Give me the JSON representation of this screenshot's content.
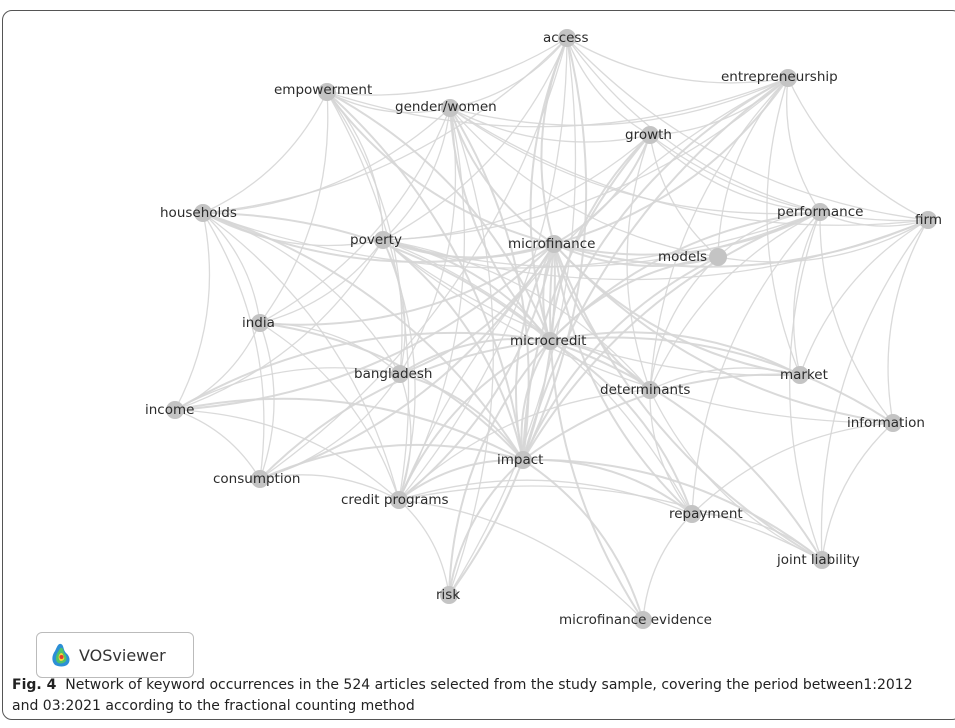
{
  "diagram": {
    "nodes": [
      {
        "id": "access",
        "label": "access"
      },
      {
        "id": "empowerment",
        "label": "empowerment"
      },
      {
        "id": "gender_women",
        "label": "gender/women"
      },
      {
        "id": "entrepreneurship",
        "label": "entrepreneurship"
      },
      {
        "id": "growth",
        "label": "growth"
      },
      {
        "id": "households",
        "label": "households"
      },
      {
        "id": "performance",
        "label": "performance"
      },
      {
        "id": "firm",
        "label": "firm"
      },
      {
        "id": "poverty",
        "label": "poverty"
      },
      {
        "id": "microfinance",
        "label": "microfinance"
      },
      {
        "id": "models",
        "label": "models"
      },
      {
        "id": "india",
        "label": "india"
      },
      {
        "id": "microcredit",
        "label": "microcredit"
      },
      {
        "id": "bangladesh",
        "label": "bangladesh"
      },
      {
        "id": "determinants",
        "label": "determinants"
      },
      {
        "id": "market",
        "label": "market"
      },
      {
        "id": "income",
        "label": "income"
      },
      {
        "id": "information",
        "label": "information"
      },
      {
        "id": "impact",
        "label": "impact"
      },
      {
        "id": "consumption",
        "label": "consumption"
      },
      {
        "id": "credit_programs",
        "label": "credit programs"
      },
      {
        "id": "repayment",
        "label": "repayment"
      },
      {
        "id": "joint_liability",
        "label": "joint liability"
      },
      {
        "id": "risk",
        "label": "risk"
      },
      {
        "id": "microfinance_evidence",
        "label": "microfinance evidence"
      }
    ],
    "edges": [
      [
        "microfinance",
        "microcredit"
      ],
      [
        "microfinance",
        "impact"
      ],
      [
        "microfinance",
        "poverty"
      ],
      [
        "microfinance",
        "gender_women"
      ],
      [
        "microfinance",
        "access"
      ],
      [
        "microfinance",
        "growth"
      ],
      [
        "microfinance",
        "entrepreneurship"
      ],
      [
        "microfinance",
        "performance"
      ],
      [
        "microfinance",
        "firm"
      ],
      [
        "microfinance",
        "models"
      ],
      [
        "microfinance",
        "households"
      ],
      [
        "microfinance",
        "empowerment"
      ],
      [
        "microfinance",
        "india"
      ],
      [
        "microfinance",
        "bangladesh"
      ],
      [
        "microfinance",
        "determinants"
      ],
      [
        "microfinance",
        "market"
      ],
      [
        "microfinance",
        "information"
      ],
      [
        "microfinance",
        "credit_programs"
      ],
      [
        "microfinance",
        "repayment"
      ],
      [
        "microfinance",
        "joint_liability"
      ],
      [
        "microfinance",
        "risk"
      ],
      [
        "microfinance",
        "microfinance_evidence"
      ],
      [
        "microfinance",
        "income"
      ],
      [
        "microfinance",
        "consumption"
      ],
      [
        "microcredit",
        "impact"
      ],
      [
        "microcredit",
        "poverty"
      ],
      [
        "microcredit",
        "gender_women"
      ],
      [
        "microcredit",
        "access"
      ],
      [
        "microcredit",
        "entrepreneurship"
      ],
      [
        "microcredit",
        "performance"
      ],
      [
        "microcredit",
        "bangladesh"
      ],
      [
        "microcredit",
        "credit_programs"
      ],
      [
        "microcredit",
        "market"
      ],
      [
        "microcredit",
        "households"
      ],
      [
        "microcredit",
        "empowerment"
      ],
      [
        "microcredit",
        "income"
      ],
      [
        "microcredit",
        "consumption"
      ],
      [
        "microcredit",
        "information"
      ],
      [
        "microcredit",
        "repayment"
      ],
      [
        "microcredit",
        "joint_liability"
      ],
      [
        "microcredit",
        "growth"
      ],
      [
        "microcredit",
        "models"
      ],
      [
        "microcredit",
        "determinants"
      ],
      [
        "microcredit",
        "risk"
      ],
      [
        "impact",
        "poverty"
      ],
      [
        "impact",
        "gender_women"
      ],
      [
        "impact",
        "access"
      ],
      [
        "impact",
        "bangladesh"
      ],
      [
        "impact",
        "credit_programs"
      ],
      [
        "impact",
        "consumption"
      ],
      [
        "impact",
        "income"
      ],
      [
        "impact",
        "households"
      ],
      [
        "impact",
        "empowerment"
      ],
      [
        "impact",
        "india"
      ],
      [
        "impact",
        "risk"
      ],
      [
        "impact",
        "microfinance_evidence"
      ],
      [
        "impact",
        "repayment"
      ],
      [
        "impact",
        "joint_liability"
      ],
      [
        "impact",
        "entrepreneurship"
      ],
      [
        "impact",
        "growth"
      ],
      [
        "impact",
        "performance"
      ],
      [
        "impact",
        "models"
      ],
      [
        "impact",
        "market"
      ],
      [
        "poverty",
        "gender_women"
      ],
      [
        "poverty",
        "india"
      ],
      [
        "poverty",
        "bangladesh"
      ],
      [
        "poverty",
        "empowerment"
      ],
      [
        "poverty",
        "households"
      ],
      [
        "poverty",
        "income"
      ],
      [
        "poverty",
        "access"
      ],
      [
        "poverty",
        "entrepreneurship"
      ],
      [
        "poverty",
        "performance"
      ],
      [
        "poverty",
        "credit_programs"
      ],
      [
        "poverty",
        "market"
      ],
      [
        "poverty",
        "growth"
      ],
      [
        "poverty",
        "firm"
      ],
      [
        "poverty",
        "determinants"
      ],
      [
        "poverty",
        "information"
      ],
      [
        "poverty",
        "repayment"
      ],
      [
        "gender_women",
        "empowerment"
      ],
      [
        "gender_women",
        "access"
      ],
      [
        "gender_women",
        "entrepreneurship"
      ],
      [
        "gender_women",
        "growth"
      ],
      [
        "gender_women",
        "performance"
      ],
      [
        "gender_women",
        "bangladesh"
      ],
      [
        "gender_women",
        "india"
      ],
      [
        "gender_women",
        "credit_programs"
      ],
      [
        "gender_women",
        "households"
      ],
      [
        "gender_women",
        "firm"
      ],
      [
        "gender_women",
        "models"
      ],
      [
        "gender_women",
        "risk"
      ],
      [
        "entrepreneurship",
        "growth"
      ],
      [
        "entrepreneurship",
        "performance"
      ],
      [
        "entrepreneurship",
        "firm"
      ],
      [
        "entrepreneurship",
        "access"
      ],
      [
        "entrepreneurship",
        "models"
      ],
      [
        "entrepreneurship",
        "determinants"
      ],
      [
        "entrepreneurship",
        "market"
      ],
      [
        "entrepreneurship",
        "empowerment"
      ],
      [
        "entrepreneurship",
        "credit_programs"
      ],
      [
        "performance",
        "firm"
      ],
      [
        "performance",
        "models"
      ],
      [
        "performance",
        "growth"
      ],
      [
        "performance",
        "access"
      ],
      [
        "performance",
        "information"
      ],
      [
        "performance",
        "joint_liability"
      ],
      [
        "performance",
        "determinants"
      ],
      [
        "performance",
        "market"
      ],
      [
        "performance",
        "households"
      ],
      [
        "performance",
        "repayment"
      ],
      [
        "growth",
        "access"
      ],
      [
        "growth",
        "firm"
      ],
      [
        "growth",
        "models"
      ],
      [
        "growth",
        "determinants"
      ],
      [
        "access",
        "firm"
      ],
      [
        "access",
        "credit_programs"
      ],
      [
        "access",
        "risk"
      ],
      [
        "access",
        "empowerment"
      ],
      [
        "access",
        "households"
      ],
      [
        "access",
        "consumption"
      ],
      [
        "empowerment",
        "india"
      ],
      [
        "empowerment",
        "bangladesh"
      ],
      [
        "empowerment",
        "credit_programs"
      ],
      [
        "empowerment",
        "households"
      ],
      [
        "households",
        "india"
      ],
      [
        "households",
        "consumption"
      ],
      [
        "households",
        "credit_programs"
      ],
      [
        "households",
        "bangladesh"
      ],
      [
        "india",
        "income"
      ],
      [
        "india",
        "bangladesh"
      ],
      [
        "india",
        "credit_programs"
      ],
      [
        "india",
        "consumption"
      ],
      [
        "bangladesh",
        "credit_programs"
      ],
      [
        "bangladesh",
        "consumption"
      ],
      [
        "bangladesh",
        "income"
      ],
      [
        "credit_programs",
        "consumption"
      ],
      [
        "credit_programs",
        "income"
      ],
      [
        "credit_programs",
        "repayment"
      ],
      [
        "credit_programs",
        "joint_liability"
      ],
      [
        "credit_programs",
        "determinants"
      ],
      [
        "income",
        "consumption"
      ],
      [
        "income",
        "households"
      ],
      [
        "determinants",
        "repayment"
      ],
      [
        "determinants",
        "models"
      ],
      [
        "determinants",
        "market"
      ],
      [
        "determinants",
        "joint_liability"
      ],
      [
        "repayment",
        "joint_liability"
      ],
      [
        "repayment",
        "information"
      ],
      [
        "joint_liability",
        "information"
      ],
      [
        "joint_liability",
        "firm"
      ],
      [
        "market",
        "firm"
      ],
      [
        "models",
        "firm"
      ],
      [
        "information",
        "firm"
      ],
      [
        "risk",
        "credit_programs"
      ],
      [
        "microfinance_evidence",
        "repayment"
      ],
      [
        "microfinance_evidence",
        "credit_programs"
      ]
    ]
  },
  "logo": {
    "label": "VOSviewer"
  },
  "caption": {
    "fig_label": "Fig. 4",
    "text": "Network of keyword occurrences in the 524 articles selected from the study sample, covering the period between1:2012 and 03:2021 according to the fractional counting method"
  }
}
